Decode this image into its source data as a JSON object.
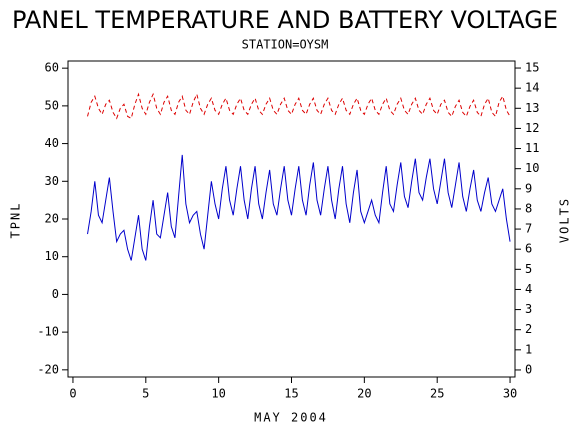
{
  "chart_data": {
    "type": "line",
    "title": "PANEL TEMPERATURE AND BATTERY VOLTAGE",
    "subtitle": "STATION=OYSM",
    "x_label": "MAY 2004",
    "y_label": "TPNL",
    "y2_label": "VOLTS",
    "xlim": [
      -0.34,
      30.34
    ],
    "xticks": [
      0,
      5,
      10,
      15,
      20,
      25,
      30
    ],
    "ylim": [
      -21.9,
      61.9
    ],
    "yticks": [
      -20,
      -10,
      0,
      10,
      20,
      30,
      40,
      50,
      60
    ],
    "y2lim": [
      -0.35,
      15.35
    ],
    "y2ticks": [
      0,
      1,
      2,
      3,
      4,
      5,
      6,
      7,
      8,
      9,
      10,
      11,
      12,
      13,
      14,
      15
    ],
    "x": [
      1,
      1.25,
      1.5,
      1.75,
      2,
      2.25,
      2.5,
      2.75,
      3,
      3.25,
      3.5,
      3.75,
      4,
      4.25,
      4.5,
      4.75,
      5,
      5.25,
      5.5,
      5.75,
      6,
      6.25,
      6.5,
      6.75,
      7,
      7.25,
      7.5,
      7.75,
      8,
      8.25,
      8.5,
      8.75,
      9,
      9.25,
      9.5,
      9.75,
      10,
      10.25,
      10.5,
      10.75,
      11,
      11.25,
      11.5,
      11.75,
      12,
      12.25,
      12.5,
      12.75,
      13,
      13.25,
      13.5,
      13.75,
      14,
      14.25,
      14.5,
      14.75,
      15,
      15.25,
      15.5,
      15.75,
      16,
      16.25,
      16.5,
      16.75,
      17,
      17.25,
      17.5,
      17.75,
      18,
      18.25,
      18.5,
      18.75,
      19,
      19.25,
      19.5,
      19.75,
      20,
      20.25,
      20.5,
      20.75,
      21,
      21.25,
      21.5,
      21.75,
      22,
      22.25,
      22.5,
      22.75,
      23,
      23.25,
      23.5,
      23.75,
      24,
      24.25,
      24.5,
      24.75,
      25,
      25.25,
      25.5,
      25.75,
      26,
      26.25,
      26.5,
      26.75,
      27,
      27.25,
      27.5,
      27.75,
      28,
      28.25,
      28.5,
      28.75,
      29,
      29.25,
      29.5,
      29.75,
      30
    ],
    "series": [
      {
        "name": "TPNL",
        "color": "#0000cc",
        "dash": false,
        "values": [
          16,
          22,
          30,
          21,
          19,
          25,
          31,
          22,
          14,
          16,
          17,
          12,
          9,
          15,
          21,
          12,
          9,
          18,
          25,
          16,
          15,
          21,
          27,
          18,
          15,
          26,
          37,
          24,
          19,
          21,
          22,
          16,
          12,
          21,
          30,
          24,
          20,
          28,
          34,
          25,
          21,
          28,
          34,
          25,
          20,
          28,
          34,
          24,
          20,
          27,
          33,
          24,
          21,
          28,
          34,
          25,
          21,
          28,
          34,
          25,
          21,
          29,
          35,
          25,
          21,
          28,
          34,
          25,
          20,
          28,
          34,
          24,
          19,
          27,
          33,
          22,
          19,
          22,
          25,
          21,
          19,
          27,
          34,
          24,
          22,
          29,
          35,
          26,
          23,
          30,
          36,
          27,
          25,
          31,
          36,
          28,
          24,
          30,
          36,
          27,
          23,
          29,
          35,
          26,
          22,
          28,
          33,
          25,
          22,
          27,
          31,
          24,
          22,
          25,
          28,
          20,
          14
        ]
      },
      {
        "name": "VOLTS",
        "color": "#dd0000",
        "dash": true,
        "axis": "y2",
        "values": [
          12.6,
          13.3,
          13.6,
          13.0,
          12.7,
          13.2,
          13.4,
          12.8,
          12.5,
          13.0,
          13.2,
          12.6,
          12.5,
          13.2,
          13.7,
          13.0,
          12.7,
          13.3,
          13.7,
          13.0,
          12.7,
          13.3,
          13.6,
          12.9,
          12.7,
          13.3,
          13.6,
          12.9,
          12.7,
          13.3,
          13.7,
          13.0,
          12.7,
          13.2,
          13.5,
          12.9,
          12.7,
          13.2,
          13.5,
          12.9,
          12.7,
          13.2,
          13.5,
          12.9,
          12.7,
          13.2,
          13.5,
          12.9,
          12.7,
          13.2,
          13.5,
          12.9,
          12.7,
          13.2,
          13.5,
          12.9,
          12.7,
          13.2,
          13.5,
          12.9,
          12.7,
          13.2,
          13.5,
          12.9,
          12.7,
          13.2,
          13.5,
          12.9,
          12.7,
          13.2,
          13.5,
          12.9,
          12.7,
          13.2,
          13.5,
          12.9,
          12.7,
          13.2,
          13.5,
          12.9,
          12.7,
          13.2,
          13.5,
          12.9,
          12.7,
          13.2,
          13.5,
          12.9,
          12.7,
          13.2,
          13.5,
          12.9,
          12.7,
          13.2,
          13.5,
          12.9,
          12.7,
          13.2,
          13.4,
          12.8,
          12.6,
          13.1,
          13.4,
          12.8,
          12.6,
          13.1,
          13.4,
          12.8,
          12.6,
          13.2,
          13.5,
          12.8,
          12.6,
          13.3,
          13.6,
          12.9,
          12.6
        ]
      }
    ]
  }
}
